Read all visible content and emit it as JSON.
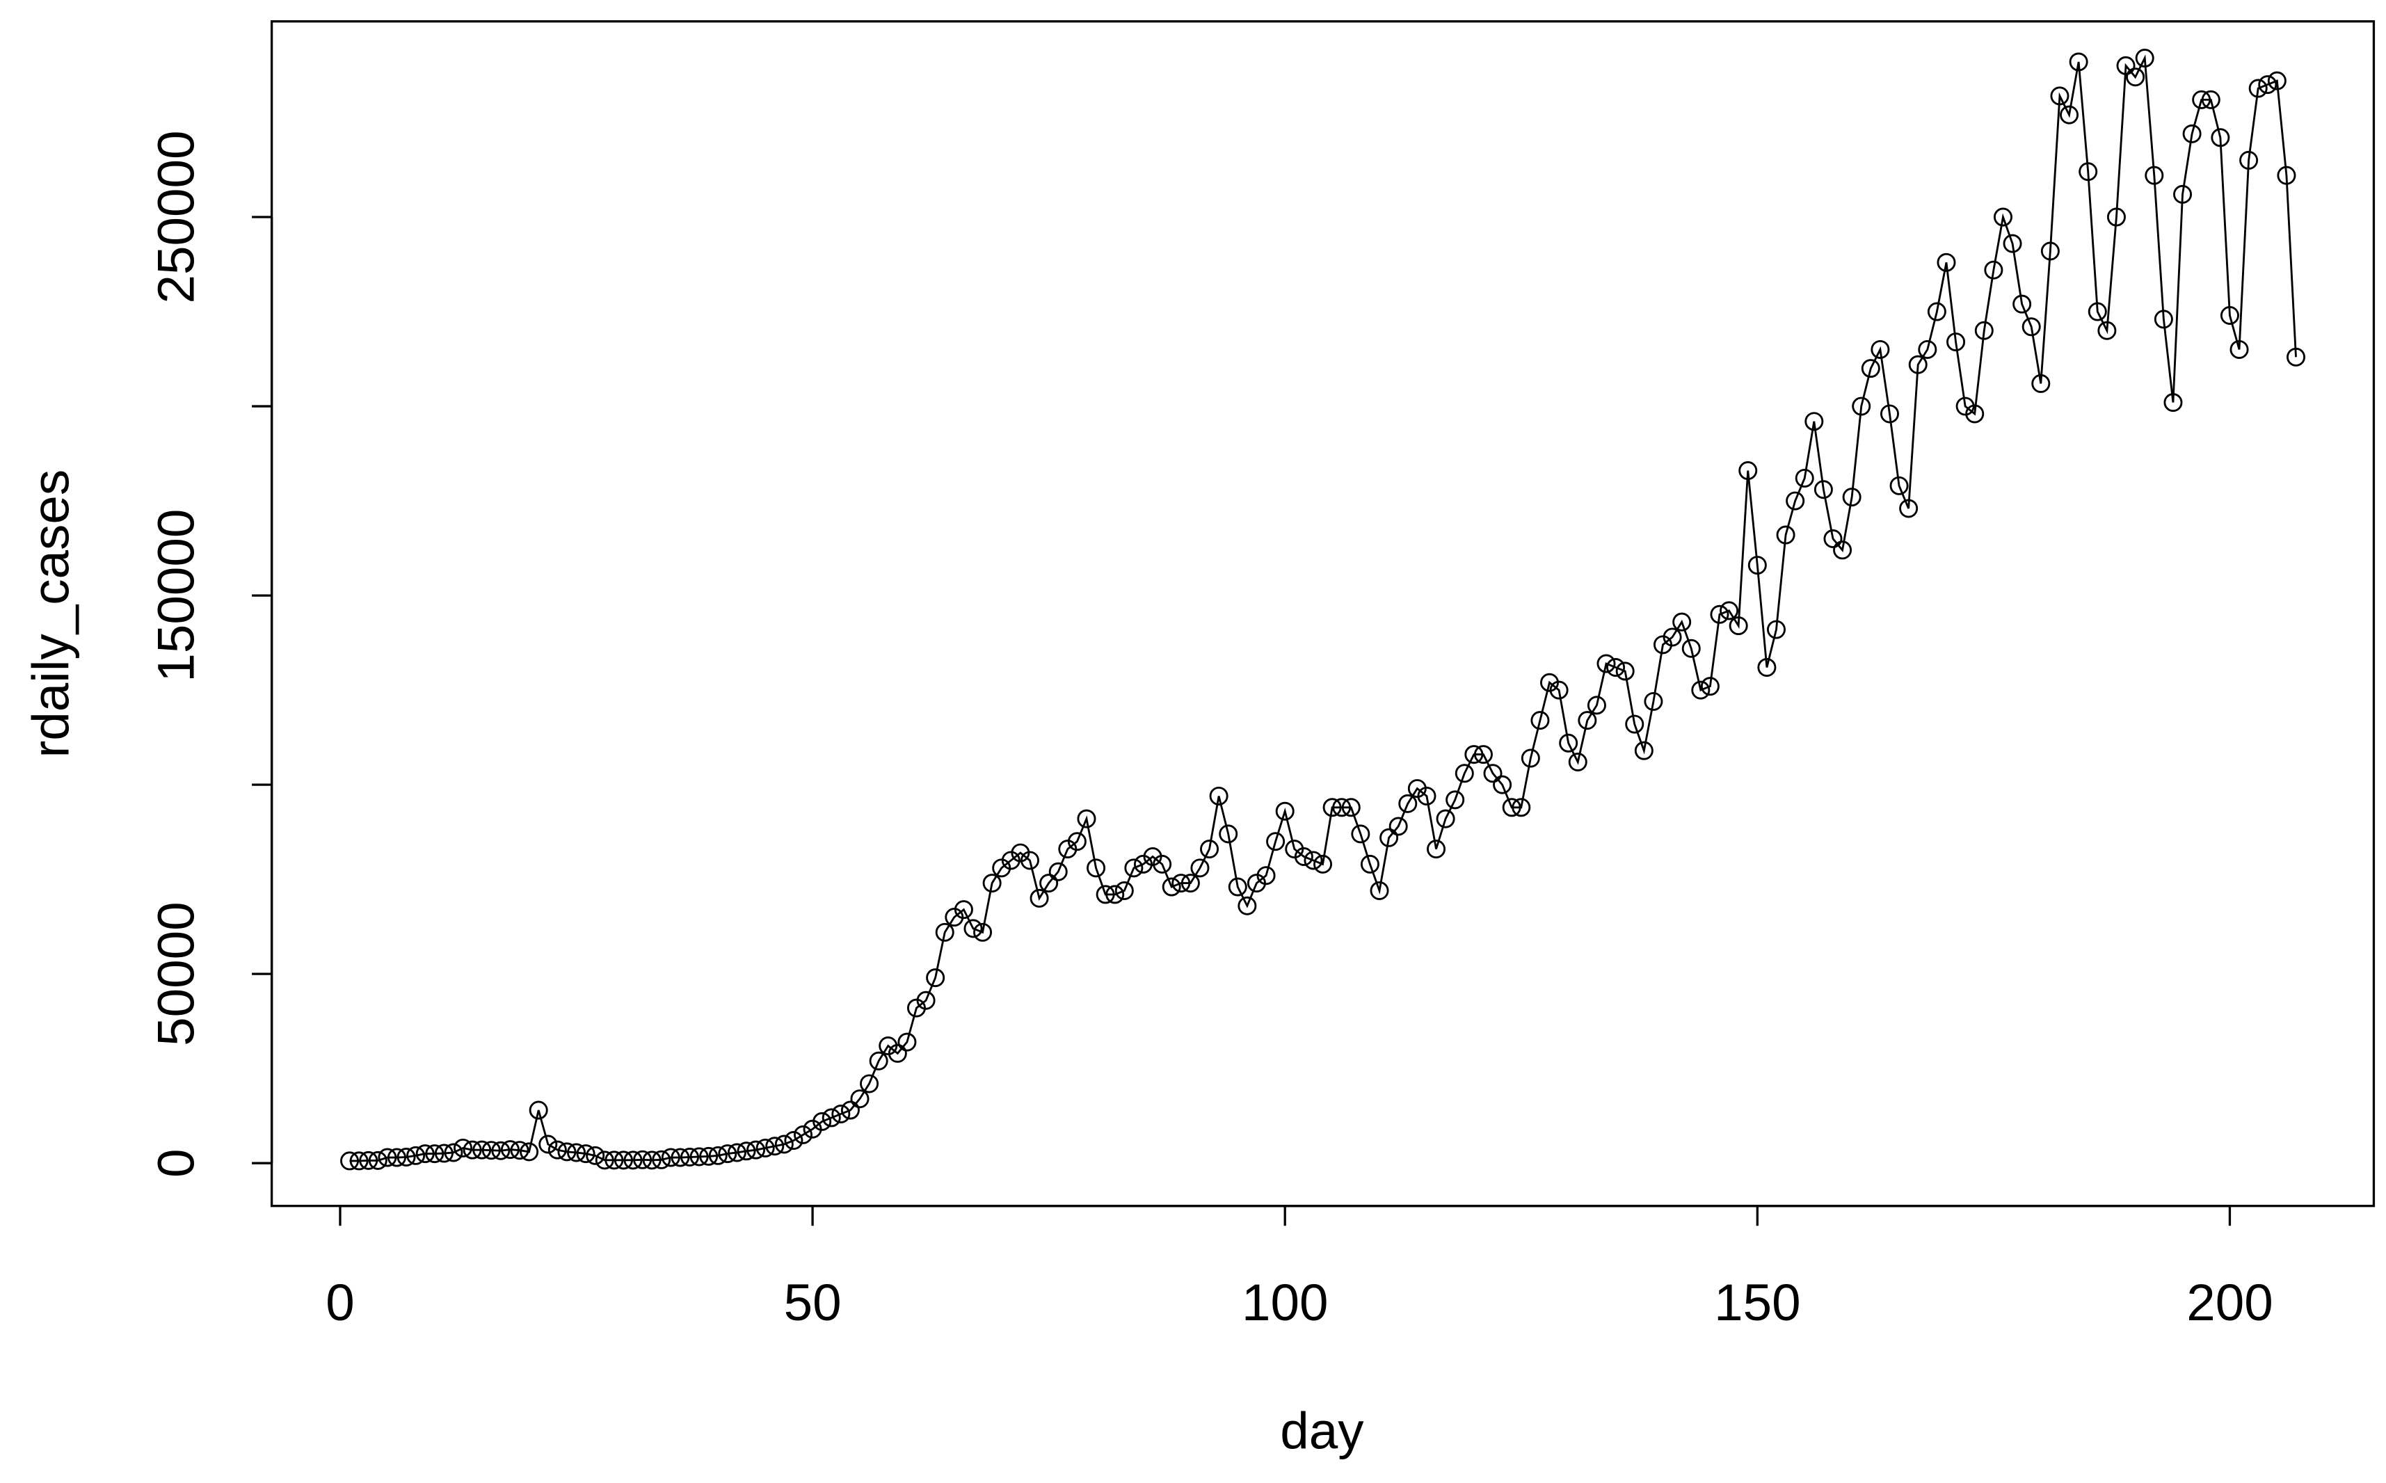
{
  "chart_data": {
    "type": "line",
    "marker": "circle",
    "color": "#000000",
    "x_label": "day",
    "y_label": "rdaily_cases",
    "xlim": [
      -7.24,
      215.24
    ],
    "xticks": [
      0,
      50,
      100,
      150,
      200
    ],
    "ylim": [
      -11300,
      301700
    ],
    "yticks": [
      0,
      50000,
      100000,
      150000,
      200000,
      250000
    ],
    "x": [
      1,
      2,
      3,
      4,
      5,
      6,
      7,
      8,
      9,
      10,
      11,
      12,
      13,
      14,
      15,
      16,
      17,
      18,
      19,
      20,
      21,
      22,
      23,
      24,
      25,
      26,
      27,
      28,
      29,
      30,
      31,
      32,
      33,
      34,
      35,
      36,
      37,
      38,
      39,
      40,
      41,
      42,
      43,
      44,
      45,
      46,
      47,
      48,
      49,
      50,
      51,
      52,
      53,
      54,
      55,
      56,
      57,
      58,
      59,
      60,
      61,
      62,
      63,
      64,
      65,
      66,
      67,
      68,
      69,
      70,
      71,
      72,
      73,
      74,
      75,
      76,
      77,
      78,
      79,
      80,
      81,
      82,
      83,
      84,
      85,
      86,
      87,
      88,
      89,
      90,
      91,
      92,
      93,
      94,
      95,
      96,
      97,
      98,
      99,
      100,
      101,
      102,
      103,
      104,
      105,
      106,
      107,
      108,
      109,
      110,
      111,
      112,
      113,
      114,
      115,
      116,
      117,
      118,
      119,
      120,
      121,
      122,
      123,
      124,
      125,
      126,
      127,
      128,
      129,
      130,
      131,
      132,
      133,
      134,
      135,
      136,
      137,
      138,
      139,
      140,
      141,
      142,
      143,
      144,
      145,
      146,
      147,
      148,
      149,
      150,
      151,
      152,
      153,
      154,
      155,
      156,
      157,
      158,
      159,
      160,
      161,
      162,
      163,
      164,
      165,
      166,
      167,
      168,
      169,
      170,
      171,
      172,
      173,
      174,
      175,
      176,
      177,
      178,
      179,
      180,
      181,
      182,
      183,
      184,
      185,
      186,
      187,
      188,
      189,
      190,
      191,
      192,
      193,
      194,
      195,
      196,
      197,
      198,
      199,
      200,
      201,
      202,
      203,
      204,
      205,
      206,
      207
    ],
    "series": [
      {
        "name": "rdaily_cases",
        "values": [
          600,
          600,
          700,
          700,
          1500,
          1500,
          1600,
          2000,
          2500,
          2500,
          2600,
          2800,
          4000,
          3500,
          3500,
          3400,
          3300,
          3600,
          3400,
          3000,
          14000,
          5000,
          3500,
          3000,
          2800,
          2500,
          2000,
          800,
          800,
          800,
          800,
          900,
          800,
          900,
          1500,
          1500,
          1600,
          1700,
          1800,
          2000,
          2500,
          2800,
          3200,
          3500,
          4000,
          4500,
          5000,
          6000,
          7500,
          9000,
          11000,
          12000,
          13000,
          14000,
          17000,
          21000,
          27000,
          31000,
          29000,
          32000,
          41000,
          43000,
          49000,
          61000,
          65000,
          67000,
          62000,
          61000,
          74000,
          78000,
          80000,
          82000,
          80000,
          70000,
          74000,
          77000,
          83000,
          85000,
          91000,
          78000,
          71000,
          71000,
          72000,
          78000,
          79000,
          81000,
          79000,
          73000,
          74000,
          74000,
          78000,
          83000,
          97000,
          87000,
          73000,
          68000,
          74000,
          76000,
          85000,
          93000,
          83000,
          81000,
          80000,
          79000,
          94000,
          94000,
          94000,
          87000,
          79000,
          72000,
          86000,
          89000,
          95000,
          99000,
          97000,
          83000,
          91000,
          96000,
          103000,
          108000,
          108000,
          103000,
          100000,
          94000,
          94000,
          107000,
          117000,
          127000,
          125000,
          111000,
          106000,
          117000,
          121000,
          132000,
          131000,
          130000,
          116000,
          109000,
          122000,
          137000,
          139000,
          143000,
          136000,
          125000,
          126000,
          145000,
          146000,
          142000,
          183000,
          158000,
          131000,
          141000,
          166000,
          175000,
          181000,
          196000,
          178000,
          165000,
          162000,
          176000,
          200000,
          210000,
          215000,
          198000,
          179000,
          173000,
          211000,
          215000,
          225000,
          238000,
          217000,
          200000,
          198000,
          220000,
          236000,
          250000,
          243000,
          227000,
          221000,
          206000,
          241000,
          282000,
          277000,
          291000,
          262000,
          225000,
          220000,
          250000,
          290000,
          287000,
          292000,
          261000,
          223000,
          201000,
          256000,
          272000,
          281000,
          281000,
          271000,
          224000,
          215000,
          265000,
          284000,
          285000,
          286000,
          261000,
          213000
        ]
      }
    ]
  }
}
